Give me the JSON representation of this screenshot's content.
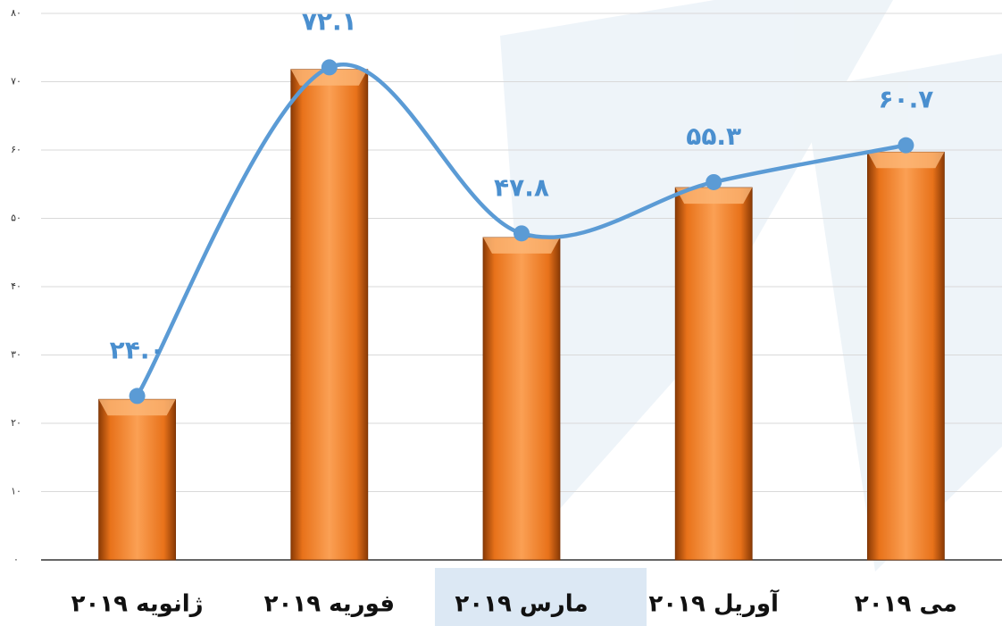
{
  "chart_data": {
    "type": "bar",
    "categories": [
      "ژانویه ۲۰۱۹",
      "فوریه ۲۰۱۹",
      "مارس ۲۰۱۹",
      "آوریل ۲۰۱۹",
      "می ۲۰۱۹"
    ],
    "series": [
      {
        "type": "bar",
        "color": "#f07f1e",
        "values": [
          23.5,
          71.8,
          47.2,
          54.5,
          59.7
        ]
      },
      {
        "type": "line",
        "color": "#5b9bd5",
        "values": [
          24.0,
          72.1,
          47.8,
          55.3,
          60.7
        ],
        "value_labels": [
          "۲۴.۰",
          "۷۲.۱",
          "۴۷.۸",
          "۵۵.۳",
          "۶۰.۷"
        ]
      }
    ],
    "ylim": [
      0,
      80
    ],
    "yticks": [
      {
        "value": 0,
        "label": "۰"
      },
      {
        "value": 10,
        "label": "۱۰"
      },
      {
        "value": 20,
        "label": "۲۰"
      },
      {
        "value": 30,
        "label": "۳۰"
      },
      {
        "value": 40,
        "label": "۴۰"
      },
      {
        "value": 50,
        "label": "۵۰"
      },
      {
        "value": 60,
        "label": "۶۰"
      },
      {
        "value": 70,
        "label": "۷۰"
      },
      {
        "value": 80,
        "label": "۸۰"
      }
    ],
    "grid": true
  }
}
